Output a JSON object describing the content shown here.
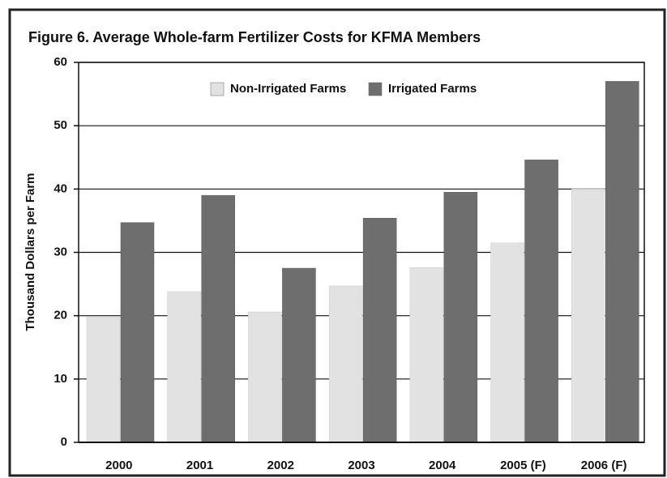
{
  "chart_data": {
    "type": "bar",
    "title": "Figure 6.  Average Whole-farm Fertilizer Costs for KFMA Members",
    "y_label": "Thousand Dollars per Farm",
    "categories": [
      "2000",
      "2001",
      "2002",
      "2003",
      "2004",
      "2005 (F)",
      "2006 (F)"
    ],
    "series": [
      {
        "name": "Non-Irrigated Farms",
        "color": "#e2e2e2",
        "values": [
          19.8,
          23.8,
          20.6,
          24.7,
          27.6,
          31.5,
          40.0
        ]
      },
      {
        "name": "Irrigated Farms",
        "color": "#6e6e6e",
        "values": [
          34.7,
          39.0,
          27.5,
          35.4,
          39.5,
          44.6,
          57.0
        ]
      }
    ],
    "ylim": [
      0,
      60
    ],
    "yticks": [
      0,
      10,
      20,
      30,
      40,
      50,
      60
    ],
    "grid": true,
    "legend": "top"
  }
}
